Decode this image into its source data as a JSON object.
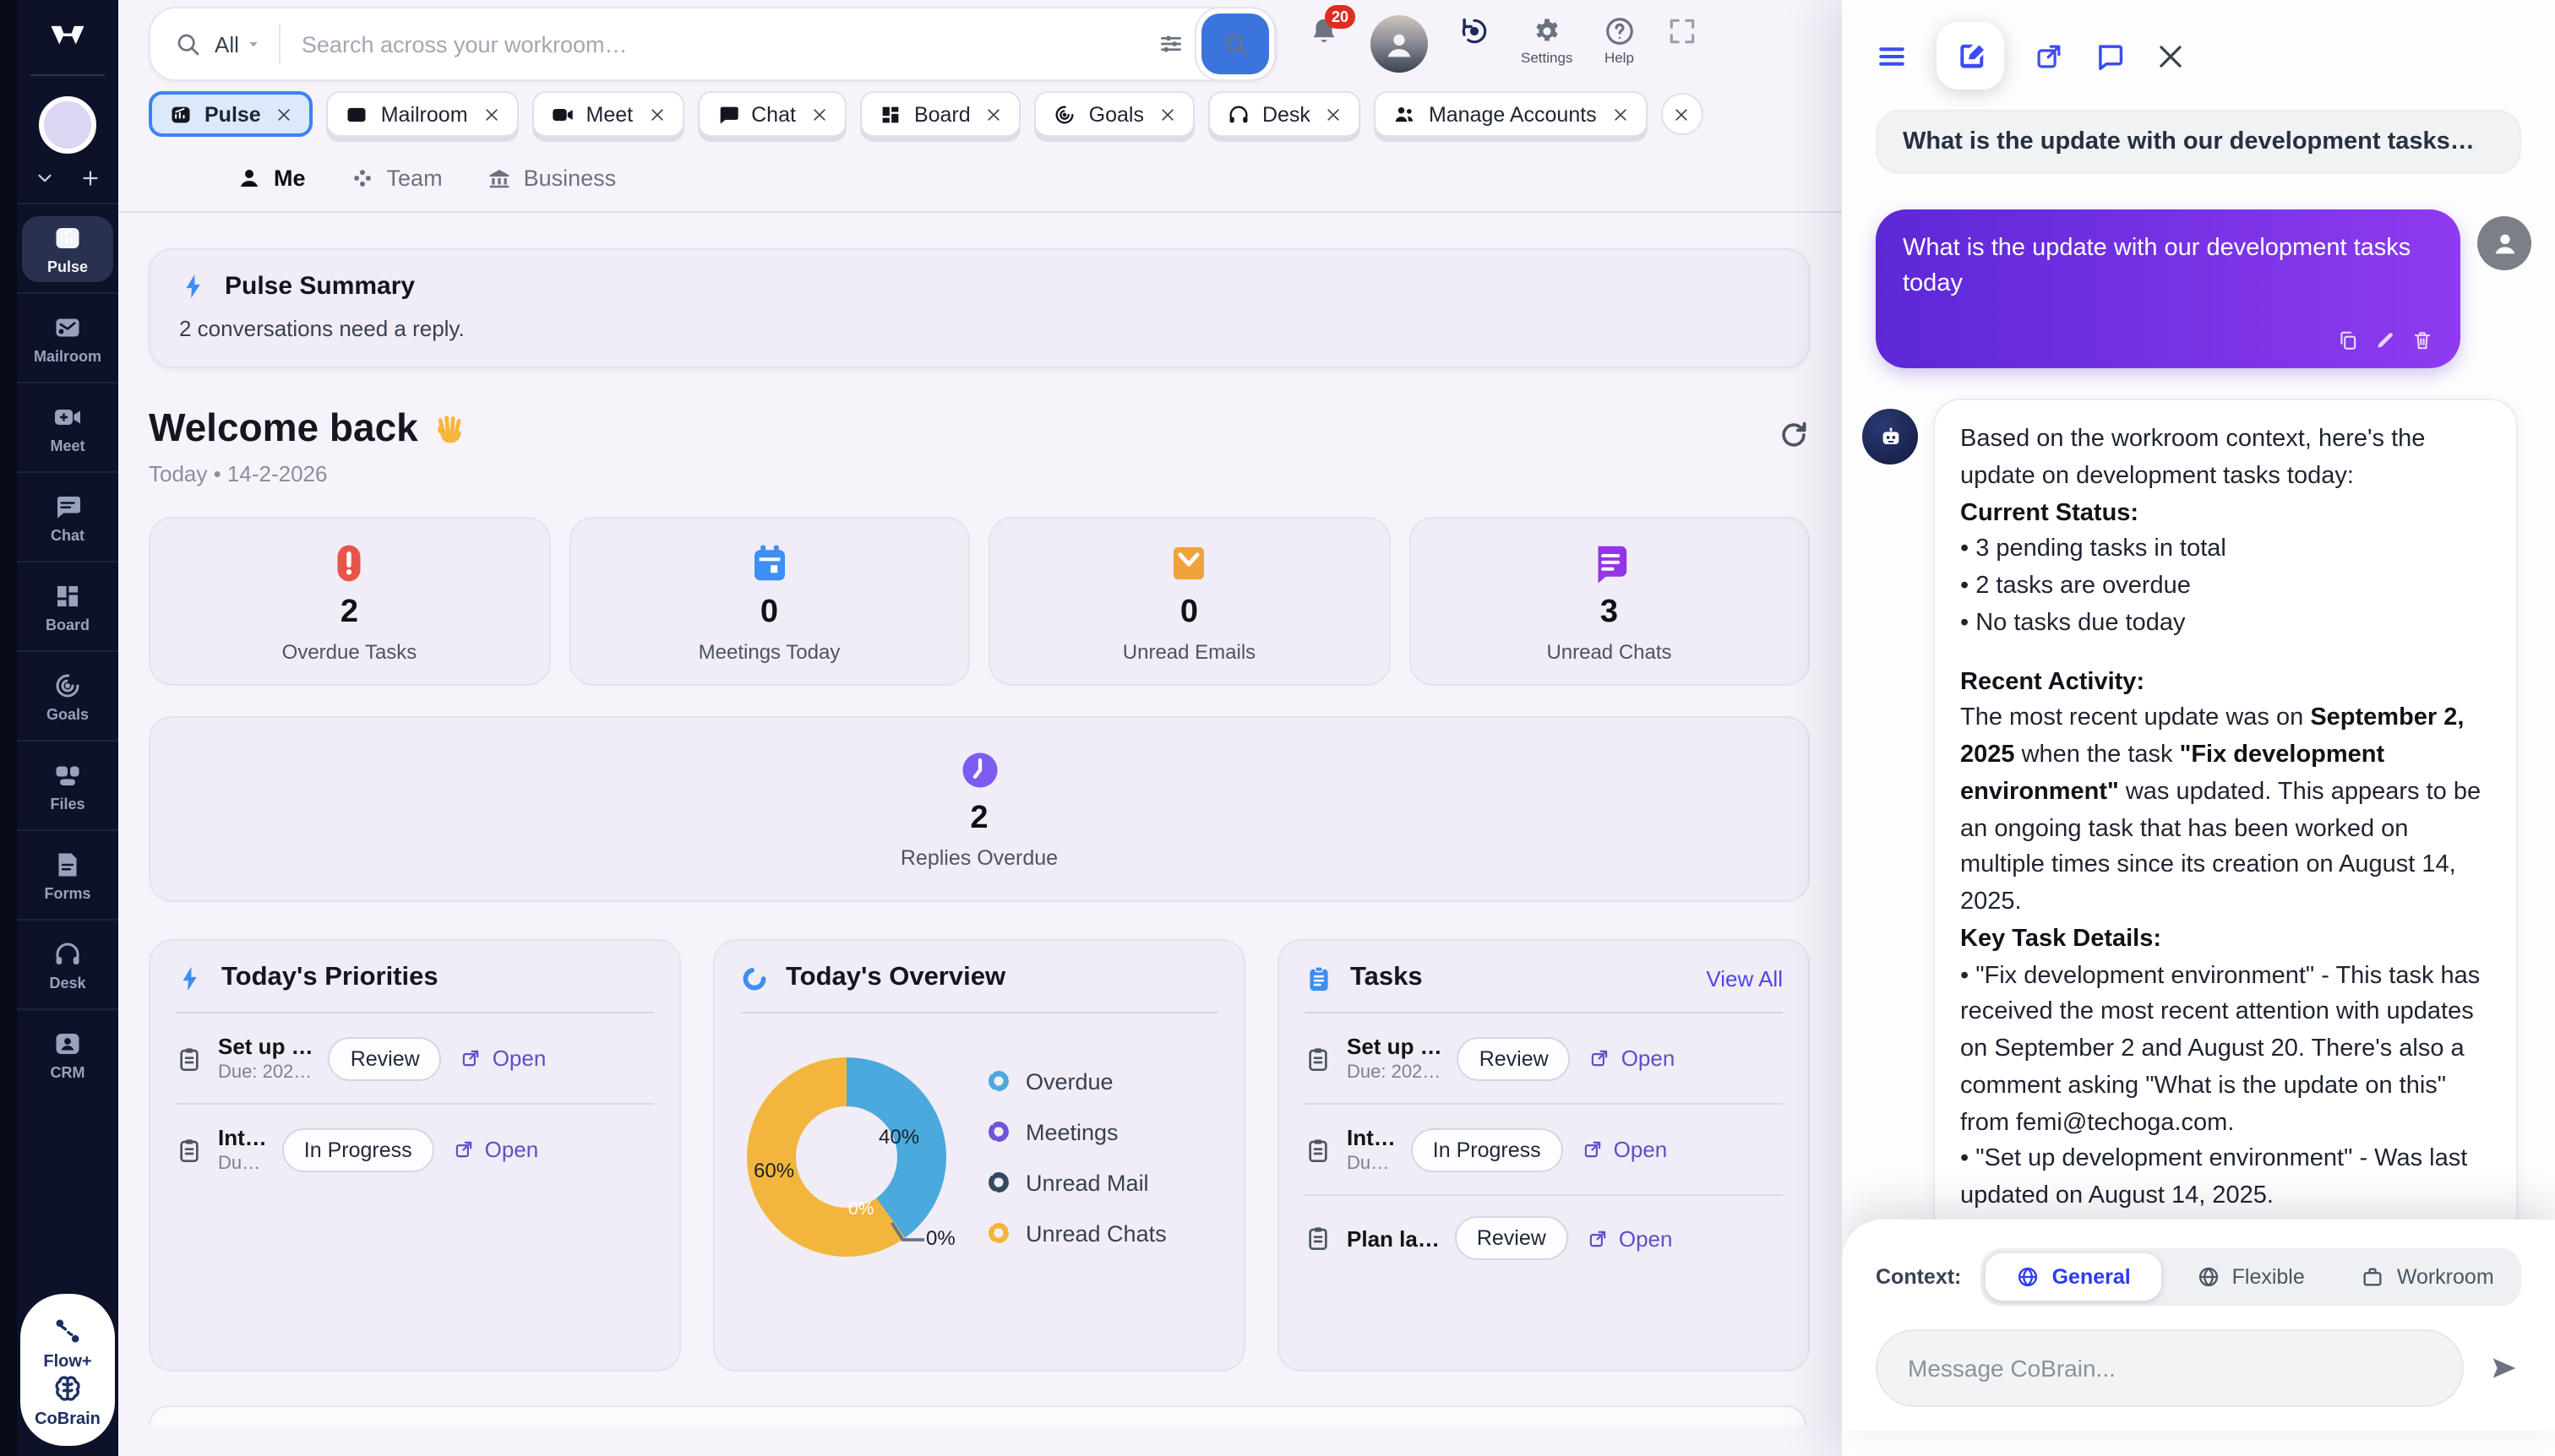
{
  "sidebar": {
    "logo_icon": "w-logo",
    "controls": [
      "chevron-down-icon",
      "plus-icon"
    ],
    "items": [
      {
        "icon": "pulse-icon",
        "label": "Pulse",
        "active": true
      },
      {
        "icon": "mailroom-icon",
        "label": "Mailroom",
        "active": false
      },
      {
        "icon": "meet-icon",
        "label": "Meet",
        "active": false
      },
      {
        "icon": "chat-icon",
        "label": "Chat",
        "active": false
      },
      {
        "icon": "board-icon",
        "label": "Board",
        "active": false
      },
      {
        "icon": "goals-icon",
        "label": "Goals",
        "active": false
      },
      {
        "icon": "files-icon",
        "label": "Files",
        "active": false
      },
      {
        "icon": "forms-icon",
        "label": "Forms",
        "active": false
      },
      {
        "icon": "desk-icon",
        "label": "Desk",
        "active": false
      },
      {
        "icon": "crm-icon",
        "label": "CRM",
        "active": false
      }
    ],
    "footer": [
      {
        "icon": "route-icon",
        "label": "Flow+"
      },
      {
        "icon": "brain-icon",
        "label": "CoBrain"
      }
    ]
  },
  "topbar": {
    "search": {
      "scope": "All",
      "placeholder": "Search across your workroom…"
    },
    "notification_badge": "20",
    "settings_label": "Settings",
    "help_label": "Help"
  },
  "tabs": [
    {
      "icon": "pulse-icon",
      "label": "Pulse",
      "active": true
    },
    {
      "icon": "mailroom-icon",
      "label": "Mailroom",
      "active": false
    },
    {
      "icon": "meet-icon",
      "label": "Meet",
      "active": false
    },
    {
      "icon": "chat-icon",
      "label": "Chat",
      "active": false
    },
    {
      "icon": "board-icon",
      "label": "Board",
      "active": false
    },
    {
      "icon": "goals-icon",
      "label": "Goals",
      "active": false
    },
    {
      "icon": "desk-icon",
      "label": "Desk",
      "active": false
    },
    {
      "icon": "people-icon",
      "label": "Manage Accounts",
      "active": false
    }
  ],
  "scopes": [
    {
      "icon": "person-icon",
      "label": "Me",
      "active": true
    },
    {
      "icon": "team-icon",
      "label": "Team",
      "active": false
    },
    {
      "icon": "bank-icon",
      "label": "Business",
      "active": false
    }
  ],
  "header": {
    "pulse_summary_title": "Pulse Summary",
    "pulse_summary_text": "2 conversations need a reply.",
    "welcome": "Welcome back",
    "welcome_icon": "wave-icon",
    "date": "Today • 14-2-2026"
  },
  "stats": [
    {
      "icon": "alert-icon",
      "color": "#e8544b",
      "value": "2",
      "label": "Overdue Tasks"
    },
    {
      "icon": "calendar-icon",
      "color": "#3f8ef3",
      "value": "0",
      "label": "Meetings Today"
    },
    {
      "icon": "mail-icon",
      "color": "#f0a23c",
      "value": "0",
      "label": "Unread Emails"
    },
    {
      "icon": "chat-filled-icon",
      "color": "#9333ea",
      "value": "3",
      "label": "Unread Chats"
    }
  ],
  "replies": {
    "icon": "clock-icon",
    "color": "#7c5cf0",
    "value": "2",
    "label": "Replies Overdue"
  },
  "priorities": {
    "title": "Today's Priorities",
    "items": [
      {
        "title": "Set up …",
        "due": "Due: 202…",
        "status": "Review",
        "open": "Open"
      },
      {
        "title": "Int…",
        "due": "Du…",
        "status": "In Progress",
        "open": "Open"
      }
    ]
  },
  "overview": {
    "title": "Today's Overview",
    "chart_data": {
      "type": "pie",
      "title": "Today's Overview",
      "categories": [
        "Overdue",
        "Meetings",
        "Unread Mail",
        "Unread Chats"
      ],
      "values": [
        40,
        0,
        0,
        60
      ],
      "labels": [
        "40%",
        "0%",
        "0%",
        "60%"
      ],
      "colors": [
        "#4aa9dd",
        "#7053d6",
        "#32495f",
        "#f2b63e"
      ],
      "legend_position": "right",
      "donut": true
    }
  },
  "tasks": {
    "title": "Tasks",
    "view_all": "View All",
    "items": [
      {
        "title": "Set up …",
        "due": "Due: 202…",
        "status": "Review",
        "open": "Open"
      },
      {
        "title": "Int…",
        "due": "Du…",
        "status": "In Progress",
        "open": "Open"
      },
      {
        "title": "Plan la…",
        "due": "",
        "status": "Review",
        "open": "Open"
      }
    ]
  },
  "cobrain": {
    "header_icons": [
      {
        "icon": "hamburger-icon",
        "style": "plain"
      },
      {
        "icon": "compose-icon",
        "style": "card"
      },
      {
        "icon": "external-icon",
        "style": "plain"
      },
      {
        "icon": "message-icon",
        "style": "plain"
      },
      {
        "icon": "close-icon",
        "style": "dark"
      }
    ],
    "thread_title": "What is the update with our development tasks…",
    "user_message": "What is the update with our development tasks today",
    "user_actions": [
      "copy-icon",
      "pencil-icon",
      "trash-icon"
    ],
    "response_paragraphs": [
      {
        "runs": [
          {
            "t": "Based on the workroom context, here's the update on development tasks today:"
          }
        ]
      },
      {
        "runs": [
          {
            "t": "Current Status:",
            "b": true
          }
        ]
      },
      {
        "runs": [
          {
            "t": "• 3 pending tasks in total"
          }
        ]
      },
      {
        "runs": [
          {
            "t": "• 2 tasks are overdue"
          }
        ]
      },
      {
        "runs": [
          {
            "t": "• No tasks due today"
          }
        ]
      },
      {
        "runs": []
      },
      {
        "runs": [
          {
            "t": "Recent Activity:",
            "b": true
          }
        ]
      },
      {
        "runs": [
          {
            "t": "The most recent update was on "
          },
          {
            "t": "September 2, 2025",
            "b": true
          },
          {
            "t": " when the task "
          },
          {
            "t": "\"Fix development environment\"",
            "b": true
          },
          {
            "t": " was updated. This appears to be an ongoing task that has been worked on multiple times since its creation on August 14, 2025."
          }
        ]
      },
      {
        "runs": [
          {
            "t": "Key Task Details:",
            "b": true
          }
        ]
      },
      {
        "runs": [
          {
            "t": "• \"Fix development environment\" - This task has received the most recent attention with updates on September 2 and August 20. There's also a comment asking \"What is the update on this\" from femi@techoga.com."
          }
        ]
      },
      {
        "runs": [
          {
            "t": "• \"Set up development environment\" - Was last updated on August 14, 2025."
          }
        ]
      }
    ],
    "context_label": "Context:",
    "contexts": [
      {
        "icon": "globe-icon",
        "label": "General",
        "active": true
      },
      {
        "icon": "globe-icon",
        "label": "Flexible",
        "active": false
      },
      {
        "icon": "briefcase-icon",
        "label": "Workroom",
        "active": false
      }
    ],
    "input_placeholder": "Message CoBrain..."
  }
}
